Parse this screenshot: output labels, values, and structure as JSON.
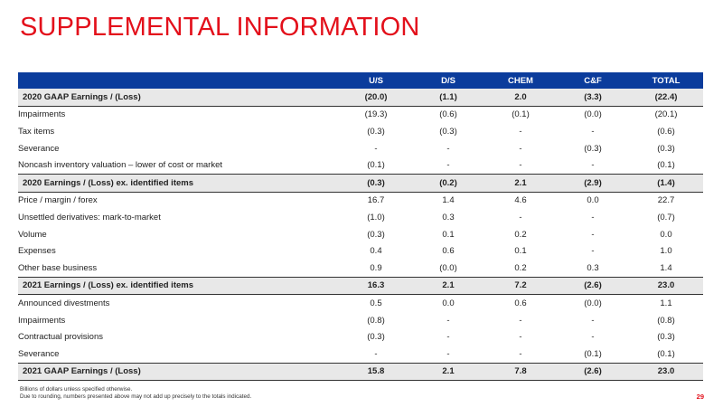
{
  "title": "SUPPLEMENTAL INFORMATION",
  "table": {
    "columns": [
      "",
      "U/S",
      "D/S",
      "CHEM",
      "C&F",
      "TOTAL"
    ],
    "rows": [
      {
        "label": "2020 GAAP Earnings / (Loss)",
        "values": [
          "(20.0)",
          "(1.1)",
          "2.0",
          "(3.3)",
          "(22.4)"
        ],
        "total": true
      },
      {
        "label": "Impairments",
        "values": [
          "(19.3)",
          "(0.6)",
          "(0.1)",
          "(0.0)",
          "(20.1)"
        ],
        "total": false
      },
      {
        "label": "Tax items",
        "values": [
          "(0.3)",
          "(0.3)",
          "-",
          "-",
          "(0.6)"
        ],
        "total": false
      },
      {
        "label": "Severance",
        "values": [
          "-",
          "-",
          "-",
          "(0.3)",
          "(0.3)"
        ],
        "total": false
      },
      {
        "label": "Noncash inventory valuation – lower of cost or market",
        "values": [
          "(0.1)",
          "-",
          "-",
          "-",
          "(0.1)"
        ],
        "total": false
      },
      {
        "label": "2020 Earnings / (Loss) ex. identified items",
        "values": [
          "(0.3)",
          "(0.2)",
          "2.1",
          "(2.9)",
          "(1.4)"
        ],
        "total": true
      },
      {
        "label": "Price / margin / forex",
        "values": [
          "16.7",
          "1.4",
          "4.6",
          "0.0",
          "22.7"
        ],
        "total": false
      },
      {
        "label": "Unsettled derivatives: mark-to-market",
        "values": [
          "(1.0)",
          "0.3",
          "-",
          "-",
          "(0.7)"
        ],
        "total": false
      },
      {
        "label": "Volume",
        "values": [
          "(0.3)",
          "0.1",
          "0.2",
          "-",
          "0.0"
        ],
        "total": false
      },
      {
        "label": "Expenses",
        "values": [
          "0.4",
          "0.6",
          "0.1",
          "-",
          "1.0"
        ],
        "total": false
      },
      {
        "label": "Other base business",
        "values": [
          "0.9",
          "(0.0)",
          "0.2",
          "0.3",
          "1.4"
        ],
        "total": false
      },
      {
        "label": "2021 Earnings / (Loss) ex. identified items",
        "values": [
          "16.3",
          "2.1",
          "7.2",
          "(2.6)",
          "23.0"
        ],
        "total": true
      },
      {
        "label": "Announced divestments",
        "values": [
          "0.5",
          "0.0",
          "0.6",
          "(0.0)",
          "1.1"
        ],
        "total": false
      },
      {
        "label": "Impairments",
        "values": [
          "(0.8)",
          "-",
          "-",
          "-",
          "(0.8)"
        ],
        "total": false
      },
      {
        "label": "Contractual provisions",
        "values": [
          "(0.3)",
          "-",
          "-",
          "-",
          "(0.3)"
        ],
        "total": false
      },
      {
        "label": "Severance",
        "values": [
          "-",
          "-",
          "-",
          "(0.1)",
          "(0.1)"
        ],
        "total": false
      },
      {
        "label": "2021 GAAP Earnings / (Loss)",
        "values": [
          "15.8",
          "2.1",
          "7.8",
          "(2.6)",
          "23.0"
        ],
        "total": true
      }
    ]
  },
  "footnotes": [
    "Billions of dollars unless specified otherwise.",
    "Due to rounding, numbers presented above may not add up precisely to the totals indicated."
  ],
  "page_number": "29",
  "colors": {
    "accent": "#e3101b",
    "header": "#0b3c9c",
    "total_row": "#e8e8e8"
  }
}
